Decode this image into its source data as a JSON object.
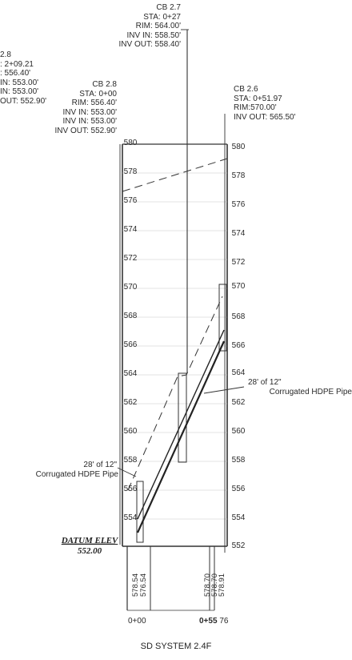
{
  "structures": {
    "cb29": {
      "lines": [
        "2.8",
        ": 2+09.21",
        ": 556.40'",
        "IN: 553.00'",
        "IN: 553.00'",
        "OUT: 552.90'"
      ]
    },
    "cb27": {
      "lines": [
        "CB 2.7",
        "STA: 0+27",
        "RIM: 564.00'",
        "INV IN: 558.50'",
        "INV OUT: 558.40'"
      ]
    },
    "cb28": {
      "lines": [
        "CB 2.8",
        "STA: 0+00",
        "RIM: 556.40'",
        "INV IN: 553.00'",
        "INV IN: 553.00'",
        "INV OUT: 552.90'"
      ]
    },
    "cb26": {
      "lines": [
        "CB 2.6",
        "STA: 0+51.97",
        "RIM:570.00'",
        "INV OUT: 565.50'"
      ]
    }
  },
  "elevations_left": [
    "580",
    "578",
    "576",
    "574",
    "572",
    "570",
    "568",
    "566",
    "564",
    "562",
    "560",
    "558",
    "556",
    "554"
  ],
  "elevations_right": [
    "580",
    "578",
    "576",
    "574",
    "572",
    "570",
    "568",
    "566",
    "564",
    "562",
    "560",
    "558",
    "556",
    "554",
    "552"
  ],
  "pipes": {
    "upper": {
      "lines": [
        "28' of 12\"",
        "Corrugated HDPE Pipe"
      ]
    },
    "lower": {
      "lines": [
        "28' of 12\"",
        "Corrugated HDPE Pipe"
      ]
    }
  },
  "datum": {
    "label": "DATUM ELEV",
    "value": "552.00"
  },
  "ground_labels": [
    "578.54",
    "576.54",
    "578.70",
    "578.70",
    "578.91"
  ],
  "stations": {
    "start": "0+00",
    "end_bold": "0+55",
    "end_suffix": "76"
  },
  "title": "SD SYSTEM 2.4F"
}
